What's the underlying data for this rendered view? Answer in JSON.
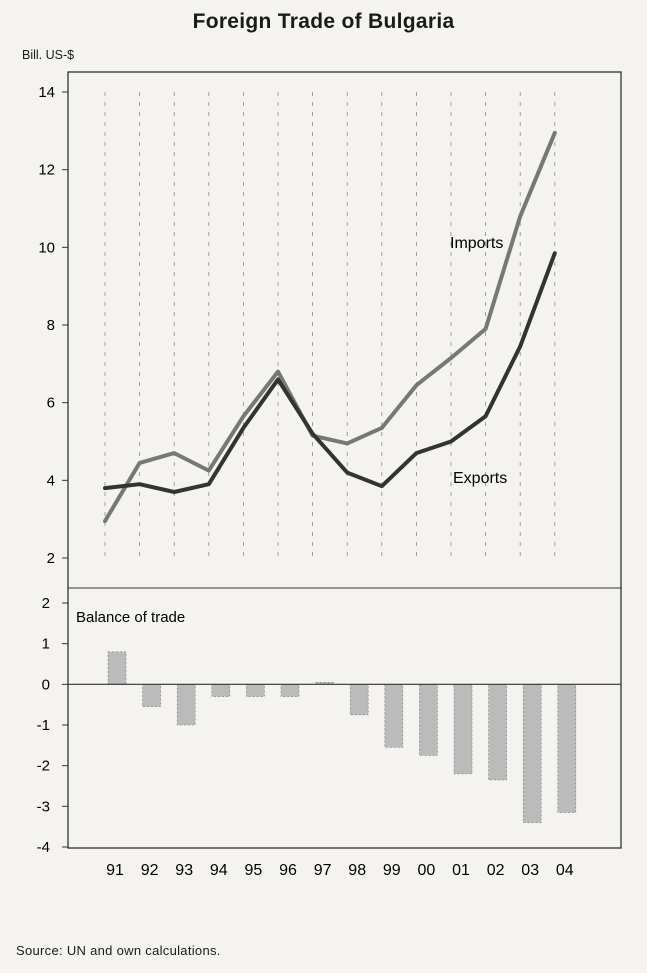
{
  "title": "Foreign Trade of Bulgaria",
  "unit_label": "Bill. US-$",
  "source": "Source: UN and own calculations.",
  "chart_data": [
    {
      "type": "line",
      "categories": [
        "91",
        "92",
        "93",
        "94",
        "95",
        "96",
        "97",
        "98",
        "99",
        "00",
        "01",
        "02",
        "03",
        "04"
      ],
      "series": [
        {
          "name": "Imports",
          "color": "#777777",
          "values": [
            2.95,
            4.45,
            4.7,
            4.25,
            5.65,
            6.8,
            5.15,
            4.95,
            5.35,
            6.45,
            7.15,
            7.9,
            10.8,
            12.95
          ]
        },
        {
          "name": "Exports",
          "color": "#333333",
          "values": [
            3.8,
            3.9,
            3.7,
            3.9,
            5.35,
            6.6,
            5.2,
            4.2,
            3.85,
            4.7,
            5.0,
            5.65,
            7.45,
            9.85
          ]
        }
      ],
      "ylim": [
        2,
        14
      ],
      "yticks": [
        "2",
        "4",
        "6",
        "8",
        "10",
        "12",
        "14"
      ],
      "grid": "vertical dashed"
    },
    {
      "type": "bar",
      "title": "Balance of trade",
      "categories": [
        "91",
        "92",
        "93",
        "94",
        "95",
        "96",
        "97",
        "98",
        "99",
        "00",
        "01",
        "02",
        "03",
        "04"
      ],
      "values": [
        0.8,
        -0.55,
        -1.0,
        -0.3,
        -0.3,
        -0.3,
        0.05,
        -0.75,
        -1.55,
        -1.75,
        -2.2,
        -2.35,
        -3.4,
        -3.15
      ],
      "ylim": [
        -4,
        2
      ],
      "yticks": [
        "2",
        "1",
        "0",
        "-1",
        "-2",
        "-3",
        "-4"
      ],
      "color": "#bbbbbb"
    }
  ]
}
